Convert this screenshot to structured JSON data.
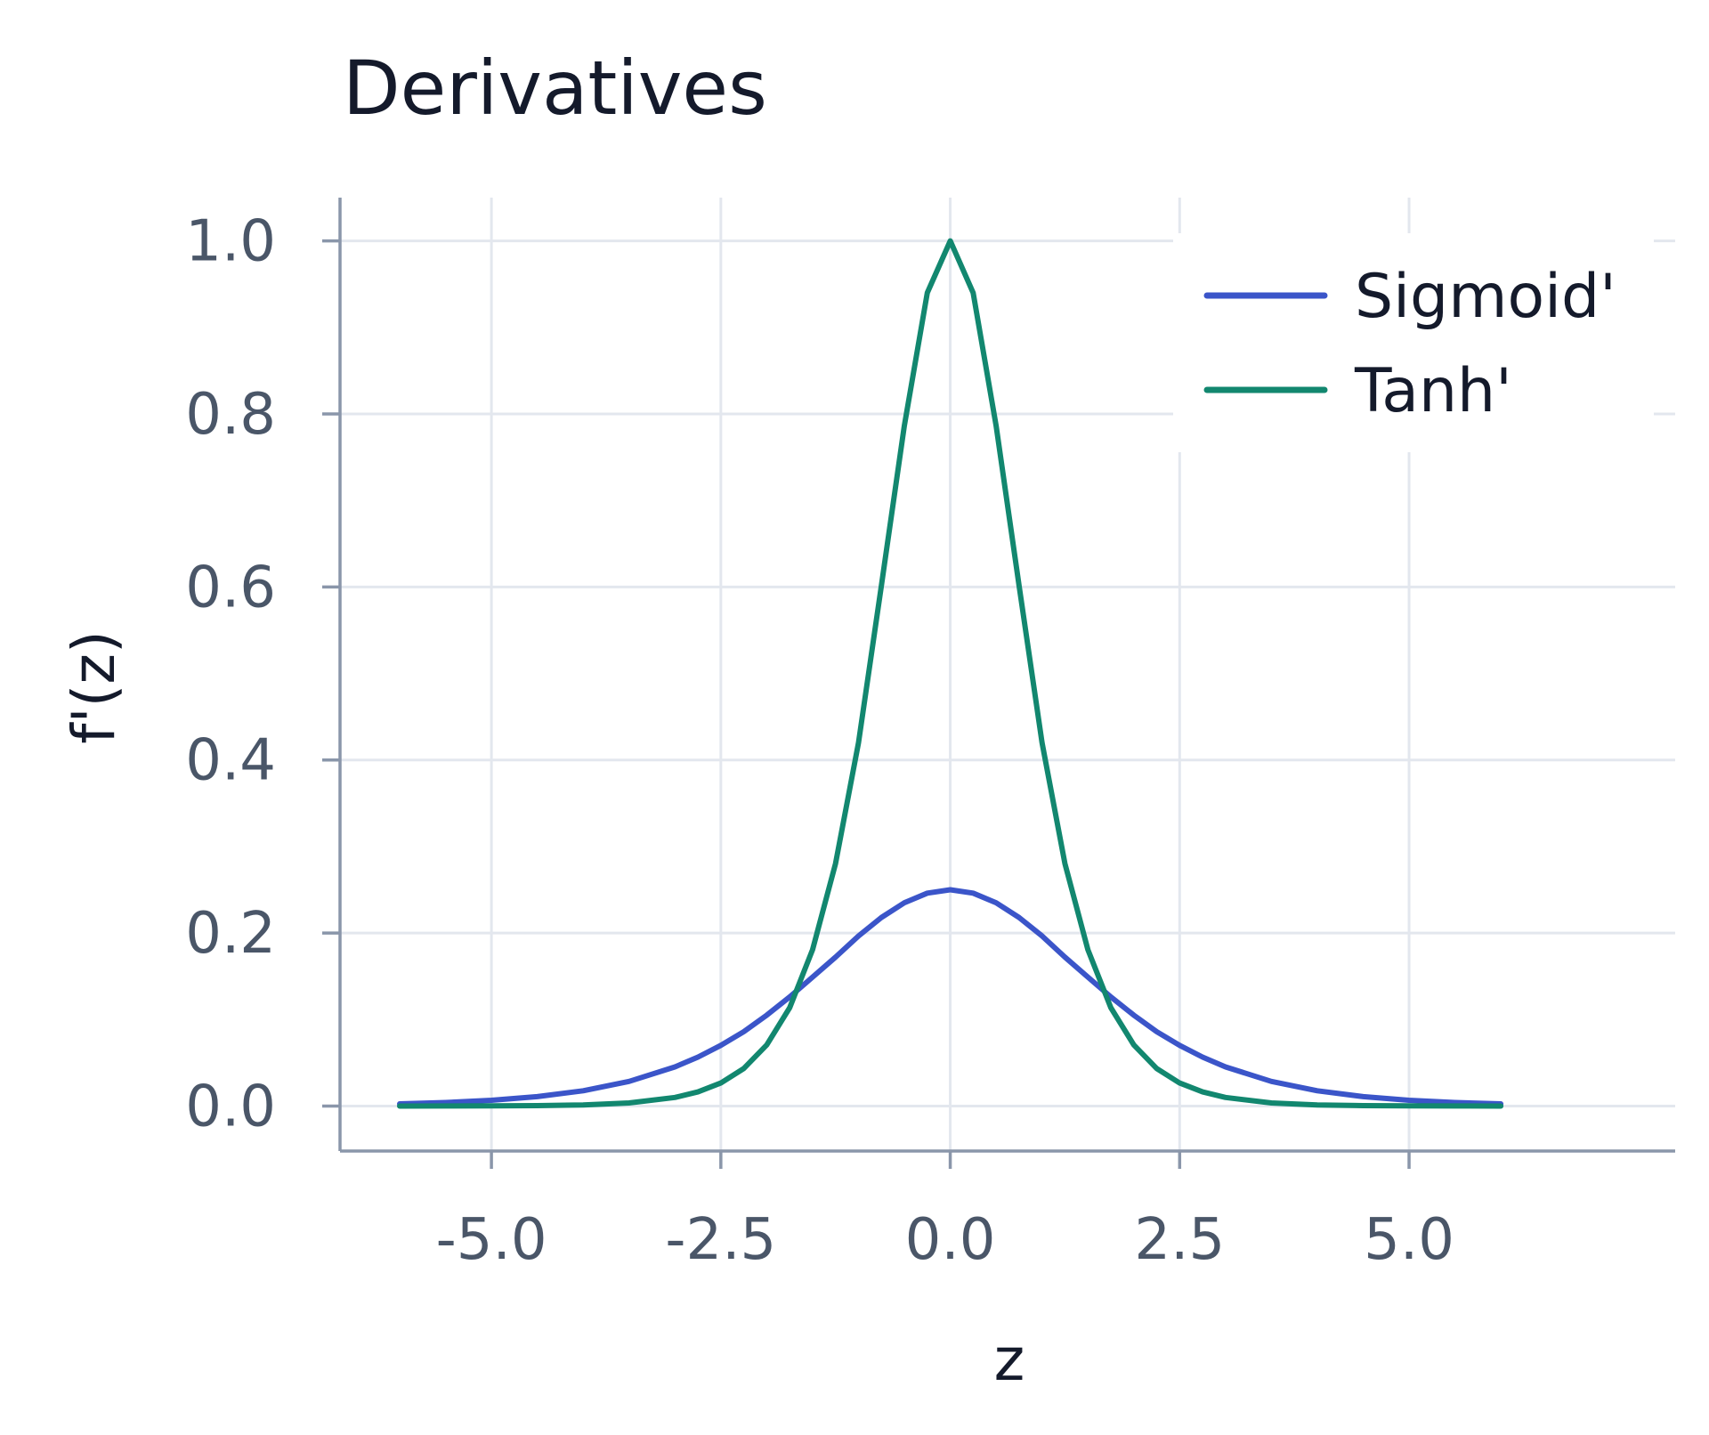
{
  "chart_data": {
    "type": "line",
    "title": "Derivatives",
    "xlabel": "z",
    "ylabel": "f'(z)",
    "xlim": [
      -6.65,
      7.9
    ],
    "ylim": [
      -0.052,
      1.05
    ],
    "xticks": [
      -5.0,
      -2.5,
      0.0,
      2.5,
      5.0
    ],
    "xtick_labels": [
      "-5.0",
      "-2.5",
      "0.0",
      "2.5",
      "5.0"
    ],
    "yticks": [
      0.0,
      0.2,
      0.4,
      0.6,
      0.8,
      1.0
    ],
    "ytick_labels": [
      "0.0",
      "0.2",
      "0.4",
      "0.6",
      "0.8",
      "1.0"
    ],
    "grid": true,
    "legend_position": "top-right",
    "series": [
      {
        "name": "Sigmoid'",
        "color": "#3b55c9",
        "x": [
          -6.0,
          -5.5,
          -5.0,
          -4.5,
          -4.0,
          -3.5,
          -3.0,
          -2.75,
          -2.5,
          -2.25,
          -2.0,
          -1.75,
          -1.5,
          -1.25,
          -1.0,
          -0.75,
          -0.5,
          -0.25,
          0.0,
          0.25,
          0.5,
          0.75,
          1.0,
          1.25,
          1.5,
          1.75,
          2.0,
          2.25,
          2.5,
          2.75,
          3.0,
          3.5,
          4.0,
          4.5,
          5.0,
          5.5,
          6.0
        ],
        "y": [
          0.0025,
          0.0041,
          0.0066,
          0.0109,
          0.0177,
          0.0285,
          0.0452,
          0.0566,
          0.0701,
          0.086,
          0.105,
          0.1261,
          0.1491,
          0.1721,
          0.1966,
          0.2179,
          0.235,
          0.2461,
          0.25,
          0.2461,
          0.235,
          0.2179,
          0.1966,
          0.1721,
          0.1491,
          0.1261,
          0.105,
          0.086,
          0.0701,
          0.0566,
          0.0452,
          0.0285,
          0.0177,
          0.0109,
          0.0066,
          0.0041,
          0.0025
        ]
      },
      {
        "name": "Tanh'",
        "color": "#12876f",
        "x": [
          -6.0,
          -5.5,
          -5.0,
          -4.5,
          -4.0,
          -3.5,
          -3.0,
          -2.75,
          -2.5,
          -2.25,
          -2.0,
          -1.75,
          -1.5,
          -1.25,
          -1.0,
          -0.75,
          -0.5,
          -0.25,
          0.0,
          0.25,
          0.5,
          0.75,
          1.0,
          1.25,
          1.5,
          1.75,
          2.0,
          2.25,
          2.5,
          2.75,
          3.0,
          3.5,
          4.0,
          4.5,
          5.0,
          5.5,
          6.0
        ],
        "y": [
          0.0,
          0.0001,
          0.0002,
          0.0005,
          0.0013,
          0.0036,
          0.0099,
          0.0163,
          0.0266,
          0.0434,
          0.0707,
          0.1137,
          0.1807,
          0.2802,
          0.42,
          0.6015,
          0.7864,
          0.94,
          1.0,
          0.94,
          0.7864,
          0.6015,
          0.42,
          0.2802,
          0.1807,
          0.1137,
          0.0707,
          0.0434,
          0.0266,
          0.0163,
          0.0099,
          0.0036,
          0.0013,
          0.0005,
          0.0002,
          0.0001,
          0.0
        ]
      }
    ],
    "colors": {
      "grid": "#e3e7ee",
      "axis": "#8a96aa",
      "tick_text": "#4a5668",
      "text": "#141a2b",
      "background": "#ffffff"
    }
  }
}
